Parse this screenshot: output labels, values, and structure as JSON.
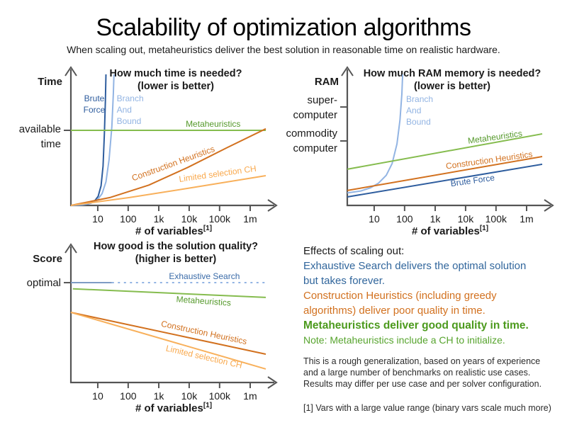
{
  "title": "Scalability of optimization algorithms",
  "subtitle": "When scaling out, metaheuristics deliver the best solution in reasonable time on realistic hardware.",
  "colors": {
    "axis": "#555555",
    "dark_blue": "#2e5d9e",
    "light_blue": "#92b4e3",
    "muted_blue": "#7e9cc4",
    "blue_label": "#3a6ba8",
    "green_line": "#85bc4e",
    "green_label": "#55992b",
    "dark_orange": "#d2711f",
    "light_orange": "#f8b05b",
    "light_orange_label": "#f9a94d"
  },
  "chart_data": [
    {
      "id": "time",
      "type": "line",
      "x_scale": "log",
      "title": "How much time is needed?",
      "title2": "(lower is better)",
      "ylabel": "Time",
      "xlabel": "# of variables",
      "xlabel_sup": "[1]",
      "x_ticks": [
        "10",
        "100",
        "1k",
        "10k",
        "100k",
        "1m"
      ],
      "y_ticks": [
        {
          "labels": [
            "available",
            "time"
          ],
          "fy": 0.573,
          "dy": 3
        }
      ],
      "series": [
        {
          "name": "Brute Force",
          "color": "#2e5d9e",
          "paths": [
            {
              "points": [
                [
                  0,
                  0
                ],
                [
                  0.05,
                  0.004
                ],
                [
                  0.09,
                  0.012
                ],
                [
                  0.12,
                  0.03
                ],
                [
                  0.14,
                  0.07
                ],
                [
                  0.155,
                  0.15
                ],
                [
                  0.165,
                  0.3
                ],
                [
                  0.172,
                  0.55
                ],
                [
                  0.177,
                  0.8
                ],
                [
                  0.18,
                  1.0
                ]
              ]
            }
          ],
          "label": {
            "lines": [
              "Brute",
              "Force"
            ],
            "fx": 0.12,
            "fy": 0.795,
            "rot": 0,
            "anchor": "middle"
          }
        },
        {
          "name": "Branch And Bound",
          "color": "#92b4e3",
          "paths": [
            {
              "points": [
                [
                  0,
                  0
                ],
                [
                  0.06,
                  0.005
                ],
                [
                  0.1,
                  0.015
                ],
                [
                  0.135,
                  0.04
                ],
                [
                  0.16,
                  0.09
                ],
                [
                  0.18,
                  0.18
                ],
                [
                  0.196,
                  0.35
                ],
                [
                  0.21,
                  0.6
                ],
                [
                  0.218,
                  0.85
                ],
                [
                  0.221,
                  1.0
                ]
              ]
            }
          ],
          "label": {
            "lines": [
              "Branch",
              "And",
              "Bound"
            ],
            "fx": 0.235,
            "fy": 0.795,
            "rot": 0,
            "anchor": "start"
          }
        },
        {
          "name": "Metaheuristics",
          "color": "#85bc4e",
          "paths": [
            {
              "points": [
                [
                  0,
                  0.573
                ],
                [
                  1,
                  0.573
                ]
              ]
            }
          ],
          "label": {
            "lines": [
              "Metaheuristics"
            ],
            "fx": 0.73,
            "fy": 0.6,
            "rot": 0,
            "anchor": "middle",
            "color": "#55992b"
          }
        },
        {
          "name": "Construction Heuristics",
          "color": "#d2711f",
          "paths": [
            {
              "points": [
                [
                  0,
                  0
                ],
                [
                  0.2,
                  0.06
                ],
                [
                  0.4,
                  0.155
                ],
                [
                  0.6,
                  0.29
                ],
                [
                  0.8,
                  0.44
                ],
                [
                  1,
                  0.585
                ]
              ]
            }
          ],
          "label": {
            "lines": [
              "Construction Heuristics"
            ],
            "fx": 0.53,
            "fy": 0.3,
            "rot": -20,
            "anchor": "middle"
          }
        },
        {
          "name": "Limited selection CH",
          "color": "#f8b05b",
          "paths": [
            {
              "points": [
                [
                  0,
                  0
                ],
                [
                  0.3,
                  0.06
                ],
                [
                  0.6,
                  0.13
                ],
                [
                  1,
                  0.227
                ]
              ]
            }
          ],
          "label": {
            "lines": [
              "Limited selection CH"
            ],
            "fx": 0.755,
            "fy": 0.22,
            "rot": -8,
            "anchor": "middle",
            "color": "#f9a94d"
          }
        }
      ]
    },
    {
      "id": "ram",
      "type": "line",
      "x_scale": "log",
      "title": "How much RAM memory is needed?",
      "title2": "(lower is better)",
      "ylabel": "RAM",
      "xlabel": "# of variables",
      "xlabel_sup": "[1]",
      "x_ticks": [
        "10",
        "100",
        "1k",
        "10k",
        "100k",
        "1m"
      ],
      "y_ticks": [
        {
          "labels": [
            "super-",
            "computer"
          ],
          "fy": 0.751,
          "dy": -5
        },
        {
          "labels": [
            "commodity",
            "computer"
          ],
          "fy": 0.492,
          "dy": -6
        }
      ],
      "series": [
        {
          "name": "Branch And Bound",
          "color": "#92b4e3",
          "paths": [
            {
              "points": [
                [
                  0,
                  0.095
                ],
                [
                  0.07,
                  0.11
                ],
                [
                  0.12,
                  0.135
                ],
                [
                  0.16,
                  0.17
                ],
                [
                  0.2,
                  0.23
                ],
                [
                  0.23,
                  0.32
                ],
                [
                  0.255,
                  0.47
                ],
                [
                  0.27,
                  0.65
                ],
                [
                  0.28,
                  0.85
                ],
                [
                  0.284,
                  1.0
                ]
              ]
            }
          ],
          "label": {
            "lines": [
              "Branch",
              "And",
              "Bound"
            ],
            "fx": 0.302,
            "fy": 0.79,
            "rot": 0,
            "anchor": "start"
          }
        },
        {
          "name": "Metaheuristics",
          "color": "#85bc4e",
          "paths": [
            {
              "points": [
                [
                  0,
                  0.276
                ],
                [
                  1,
                  0.546
                ]
              ]
            }
          ],
          "label": {
            "lines": [
              "Metaheuristics"
            ],
            "fx": 0.76,
            "fy": 0.5,
            "rot": -8,
            "anchor": "middle",
            "color": "#55992b"
          }
        },
        {
          "name": "Construction Heuristics",
          "color": "#d2711f",
          "paths": [
            {
              "points": [
                [
                  0,
                  0.114
                ],
                [
                  1,
                  0.373
                ]
              ]
            }
          ],
          "label": {
            "lines": [
              "Construction Heuristics"
            ],
            "fx": 0.73,
            "fy": 0.324,
            "rot": -8,
            "anchor": "middle"
          }
        },
        {
          "name": "Brute Force",
          "color": "#2e5d9e",
          "paths": [
            {
              "points": [
                [
                  0,
                  0.065
                ],
                [
                  1,
                  0.314
                ]
              ]
            }
          ],
          "label": {
            "lines": [
              "Brute Force"
            ],
            "fx": 0.645,
            "fy": 0.168,
            "rot": -8,
            "anchor": "middle"
          }
        }
      ]
    },
    {
      "id": "score",
      "type": "line",
      "x_scale": "log",
      "title": "How good is the solution quality?",
      "title2": "(higher is better)",
      "ylabel": "Score",
      "xlabel": "# of variables",
      "xlabel_sup": "[1]",
      "x_ticks": [
        "10",
        "100",
        "1k",
        "10k",
        "100k",
        "1m"
      ],
      "y_ticks": [
        {
          "labels": [
            "optimal"
          ],
          "fy": 0.762,
          "dy": 5
        }
      ],
      "series": [
        {
          "name": "Exhaustive Search",
          "color": "#7e9cc4",
          "paths": [
            {
              "points": [
                [
                  0,
                  0.762
                ],
                [
                  0.21,
                  0.762
                ]
              ]
            },
            {
              "points": [
                [
                  0.21,
                  0.762
                ],
                [
                  1,
                  0.762
                ]
              ],
              "dash": "3 5.5",
              "color": "#92b4e3"
            }
          ],
          "label": {
            "lines": [
              "Exhaustive Search"
            ],
            "fx": 0.685,
            "fy": 0.789,
            "rot": 0,
            "anchor": "middle",
            "color": "#3a6ba8"
          }
        },
        {
          "name": "Metaheuristics",
          "color": "#85bc4e",
          "paths": [
            {
              "points": [
                [
                  0.01,
                  0.715
                ],
                [
                  1,
                  0.649
                ]
              ]
            }
          ],
          "label": {
            "lines": [
              "Metaheuristics"
            ],
            "fx": 0.68,
            "fy": 0.6,
            "rot": 4,
            "anchor": "middle",
            "color": "#55992b"
          }
        },
        {
          "name": "Construction Heuristics",
          "color": "#d2711f",
          "paths": [
            {
              "points": [
                [
                  0,
                  0.535
                ],
                [
                  1,
                  0.216
                ]
              ]
            }
          ],
          "label": {
            "lines": [
              "Construction Heuristics"
            ],
            "fx": 0.68,
            "fy": 0.36,
            "rot": 12,
            "anchor": "middle"
          }
        },
        {
          "name": "Limited selection CH",
          "color": "#f8b05b",
          "paths": [
            {
              "points": [
                [
                  0,
                  0.535
                ],
                [
                  1,
                  0.103
                ]
              ]
            }
          ],
          "label": {
            "lines": [
              "Limited selection CH"
            ],
            "fx": 0.68,
            "fy": 0.175,
            "rot": 13,
            "anchor": "middle",
            "color": "#f9a94d"
          }
        }
      ]
    }
  ],
  "panel": {
    "lines": [
      {
        "name": "effects-heading",
        "text": "Effects of scaling out:",
        "style": "heading"
      },
      {
        "name": "exhaustive-line-1",
        "text": "Exhaustive Search delivers the optimal solution",
        "style": "blue"
      },
      {
        "name": "exhaustive-line-2",
        "text": "but takes forever.",
        "style": "blue"
      },
      {
        "name": "construction-line-1",
        "text": "Construction Heuristics (including greedy",
        "style": "orange"
      },
      {
        "name": "construction-line-2",
        "text": "algorithms) deliver poor quality in time.",
        "style": "orange"
      },
      {
        "name": "metaheuristics-line",
        "text": "Metaheuristics deliver good quality in time.",
        "style": "green-bold"
      },
      {
        "name": "note-line",
        "text": "Note: Metaheuristics include a CH to initialize.",
        "style": "green-note"
      },
      {
        "name": "generalization-line-1",
        "text": "This is a rough generalization, based on years of experience",
        "style": "small gap1"
      },
      {
        "name": "generalization-line-2",
        "text": "and a large number of benchmarks on realistic use cases.",
        "style": "small"
      },
      {
        "name": "generalization-line-3",
        "text": "Results may differ per use case and per solver configuration.",
        "style": "small"
      },
      {
        "name": "footnote-line",
        "text": "[1] Vars with a large value range (binary vars scale much more)",
        "style": "small gap2"
      }
    ]
  }
}
